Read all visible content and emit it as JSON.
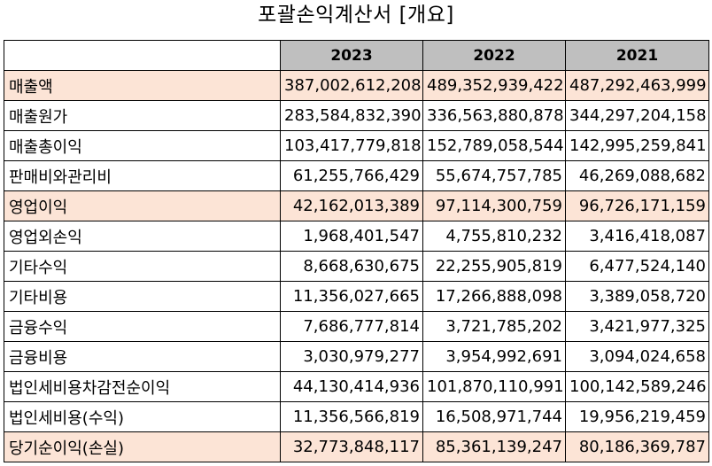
{
  "chart_data": {
    "type": "table",
    "title": "포괄손익계산서 [개요]",
    "columns": [
      "2023",
      "2022",
      "2021"
    ],
    "highlight_color": "#fce4d6",
    "header_color": "#bfbfbf",
    "rows": [
      {
        "label": "매출액",
        "values": [
          "387,002,612,208",
          "489,352,939,422",
          "487,292,463,999"
        ],
        "highlight": true
      },
      {
        "label": "매출원가",
        "values": [
          "283,584,832,390",
          "336,563,880,878",
          "344,297,204,158"
        ],
        "highlight": false
      },
      {
        "label": "매출총이익",
        "values": [
          "103,417,779,818",
          "152,789,058,544",
          "142,995,259,841"
        ],
        "highlight": false
      },
      {
        "label": "판매비와관리비",
        "values": [
          "61,255,766,429",
          "55,674,757,785",
          "46,269,088,682"
        ],
        "highlight": false
      },
      {
        "label": "영업이익",
        "values": [
          "42,162,013,389",
          "97,114,300,759",
          "96,726,171,159"
        ],
        "highlight": true
      },
      {
        "label": "영업외손익",
        "values": [
          "1,968,401,547",
          "4,755,810,232",
          "3,416,418,087"
        ],
        "highlight": false
      },
      {
        "label": "기타수익",
        "values": [
          "8,668,630,675",
          "22,255,905,819",
          "6,477,524,140"
        ],
        "highlight": false
      },
      {
        "label": "기타비용",
        "values": [
          "11,356,027,665",
          "17,266,888,098",
          "3,389,058,720"
        ],
        "highlight": false
      },
      {
        "label": "금융수익",
        "values": [
          "7,686,777,814",
          "3,721,785,202",
          "3,421,977,325"
        ],
        "highlight": false
      },
      {
        "label": "금융비용",
        "values": [
          "3,030,979,277",
          "3,954,992,691",
          "3,094,024,658"
        ],
        "highlight": false
      },
      {
        "label": "법인세비용차감전순이익",
        "values": [
          "44,130,414,936",
          "101,870,110,991",
          "100,142,589,246"
        ],
        "highlight": false
      },
      {
        "label": "법인세비용(수익)",
        "values": [
          "11,356,566,819",
          "16,508,971,744",
          "19,956,219,459"
        ],
        "highlight": false
      },
      {
        "label": "당기순이익(손실)",
        "values": [
          "32,773,848,117",
          "85,361,139,247",
          "80,186,369,787"
        ],
        "highlight": true
      }
    ]
  }
}
